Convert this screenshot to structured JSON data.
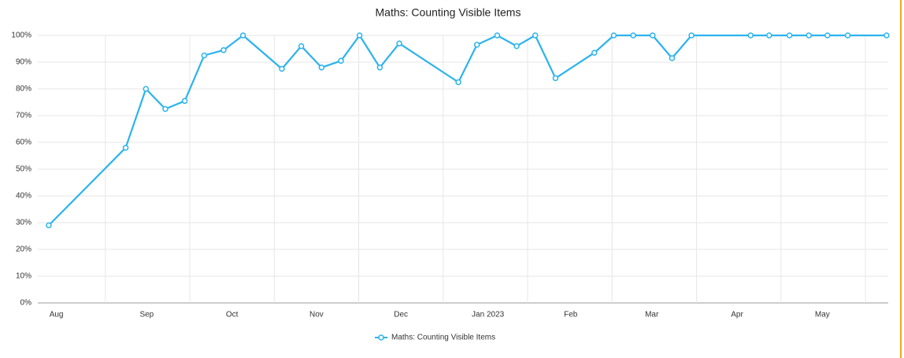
{
  "chart_data": {
    "type": "line",
    "title": "Maths: Counting Visible Items",
    "x": [
      0.33,
      1.24,
      1.48,
      1.71,
      1.94,
      2.17,
      2.4,
      2.63,
      3.09,
      3.32,
      3.56,
      3.79,
      4.01,
      4.25,
      4.48,
      5.18,
      5.4,
      5.64,
      5.87,
      6.09,
      6.33,
      6.79,
      7.02,
      7.25,
      7.48,
      7.71,
      7.94,
      8.64,
      8.86,
      9.1,
      9.33,
      9.55,
      9.79,
      10.25
    ],
    "series": [
      {
        "name": "Maths: Counting Visible Items",
        "color": "#2bb3ee",
        "values": [
          29,
          58,
          80,
          72.5,
          75.5,
          92.5,
          94.5,
          100,
          87.5,
          96,
          88,
          90.5,
          100,
          88,
          97,
          82.5,
          96.5,
          100,
          96,
          100,
          84,
          93.5,
          100,
          100,
          100,
          91.5,
          100,
          100,
          100,
          100,
          100,
          100,
          100,
          100
        ]
      }
    ],
    "xlim": [
      0.2,
      10.27
    ],
    "xticks": [
      {
        "value": 0.42,
        "label": "Aug"
      },
      {
        "value": 1.49,
        "label": "Sep"
      },
      {
        "value": 2.5,
        "label": "Oct"
      },
      {
        "value": 3.5,
        "label": "Nov"
      },
      {
        "value": 4.5,
        "label": "Dec"
      },
      {
        "value": 5.53,
        "label": "Jan 2023"
      },
      {
        "value": 6.51,
        "label": "Feb"
      },
      {
        "value": 7.47,
        "label": "Mar"
      },
      {
        "value": 8.48,
        "label": "Apr"
      },
      {
        "value": 9.49,
        "label": "May"
      }
    ],
    "xgrid": [
      1,
      2,
      3,
      4,
      5,
      6,
      7,
      8,
      9,
      10
    ],
    "ylim": [
      0,
      100
    ],
    "yticks": [
      {
        "value": 0,
        "label": "0%"
      },
      {
        "value": 10,
        "label": "10%"
      },
      {
        "value": 20,
        "label": "20%"
      },
      {
        "value": 30,
        "label": "30%"
      },
      {
        "value": 40,
        "label": "40%"
      },
      {
        "value": 50,
        "label": "50%"
      },
      {
        "value": 60,
        "label": "60%"
      },
      {
        "value": 70,
        "label": "70%"
      },
      {
        "value": 80,
        "label": "80%"
      },
      {
        "value": 90,
        "label": "90%"
      },
      {
        "value": 100,
        "label": "100%"
      }
    ],
    "grid": true,
    "legend": "bottom"
  }
}
